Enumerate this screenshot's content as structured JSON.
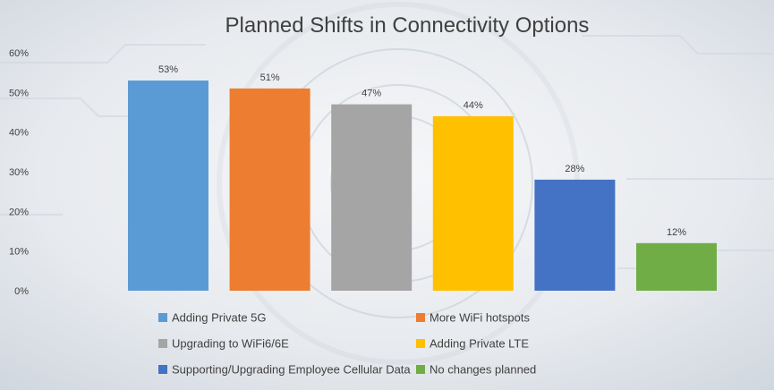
{
  "chart_data": {
    "type": "bar",
    "title": "Planned Shifts in Connectivity Options",
    "xlabel": "",
    "ylabel": "",
    "ylim": [
      0,
      60
    ],
    "y_ticks": [
      "0%",
      "10%",
      "20%",
      "30%",
      "40%",
      "50%",
      "60%"
    ],
    "y_tick_values": [
      0,
      10,
      20,
      30,
      40,
      50,
      60
    ],
    "grid": false,
    "legend_position": "bottom",
    "categories": [
      "Adding Private 5G",
      "More WiFi hotspots",
      "Upgrading to WiFi6/6E",
      "Adding Private LTE",
      "Supporting/Upgrading Employee Cellular Data",
      "No changes planned"
    ],
    "values": [
      53,
      51,
      47,
      44,
      28,
      12
    ],
    "data_labels": [
      "53%",
      "51%",
      "47%",
      "44%",
      "28%",
      "12%"
    ],
    "colors": [
      "#5b9bd5",
      "#ed7d31",
      "#a5a5a5",
      "#ffc000",
      "#4472c4",
      "#70ad47"
    ]
  }
}
